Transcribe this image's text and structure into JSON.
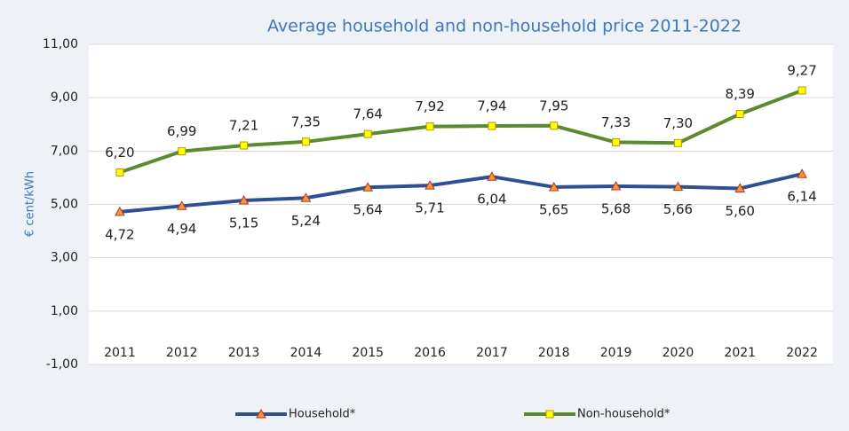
{
  "chart_data": {
    "type": "line",
    "title": "Average household and non-household price 2011-2022",
    "y_label": "€ cent/kWh",
    "categories": [
      "2011",
      "2012",
      "2013",
      "2014",
      "2015",
      "2016",
      "2017",
      "2018",
      "2019",
      "2020",
      "2021",
      "2022"
    ],
    "series": [
      {
        "name": "Household*",
        "color": "#2e4f94",
        "marker": "triangle",
        "marker_color": "#f29a2e",
        "marker_stroke": "#c0302a",
        "values": [
          4.72,
          4.94,
          5.15,
          5.24,
          5.64,
          5.71,
          6.04,
          5.65,
          5.68,
          5.66,
          5.6,
          6.14
        ],
        "value_labels": [
          "4,72",
          "4,94",
          "5,15",
          "5,24",
          "5,64",
          "5,71",
          "6,04",
          "5,65",
          "5,68",
          "5,66",
          "5,60",
          "6,14"
        ],
        "label_position": "below"
      },
      {
        "name": "Non-household*",
        "color": "#5b8a2f",
        "marker": "square",
        "marker_color": "#ffff00",
        "marker_stroke": "#b89a00",
        "values": [
          6.2,
          6.99,
          7.21,
          7.35,
          7.64,
          7.92,
          7.94,
          7.95,
          7.33,
          7.3,
          8.39,
          9.27
        ],
        "value_labels": [
          "6,20",
          "6,99",
          "7,21",
          "7,35",
          "7,64",
          "7,92",
          "7,94",
          "7,95",
          "7,33",
          "7,30",
          "8,39",
          "9,27"
        ],
        "label_position": "above"
      }
    ],
    "ylim": [
      -1,
      11
    ],
    "yticks": [
      {
        "value": -1,
        "label": "-1,00"
      },
      {
        "value": 1,
        "label": "1,00"
      },
      {
        "value": 3,
        "label": "3,00"
      },
      {
        "value": 5,
        "label": "5,00"
      },
      {
        "value": 7,
        "label": "7,00"
      },
      {
        "value": 9,
        "label": "9,00"
      },
      {
        "value": 11,
        "label": "11,00"
      }
    ],
    "grid": true,
    "legend": "bottom"
  }
}
